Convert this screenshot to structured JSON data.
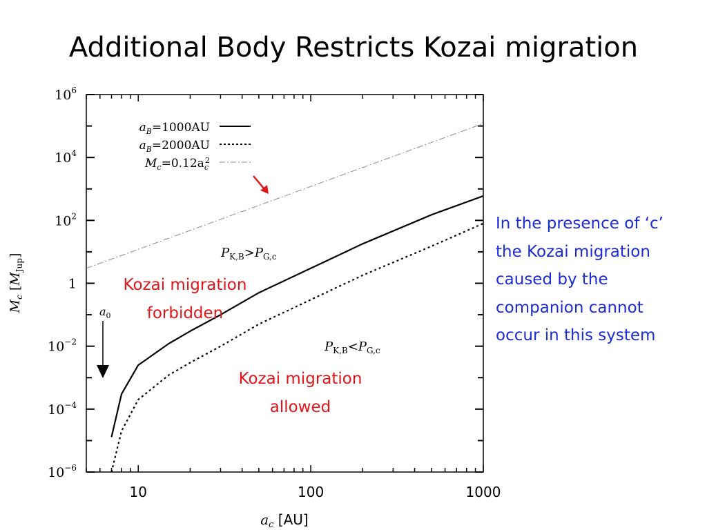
{
  "slide": {
    "title": "Additional Body Restricts Kozai migration",
    "note_lines": [
      "In the presence of ‘c’",
      "the Kozai migration",
      "caused by the",
      "companion cannot",
      "occur in this system"
    ],
    "colors": {
      "note": "#1d2bd6",
      "annotation": "#e0161a",
      "axes": "#000000",
      "dashdot_line": "#8a8a8a"
    }
  },
  "chart_data": {
    "type": "line",
    "x_scale": "log",
    "y_scale": "log",
    "xlim": [
      5,
      1000
    ],
    "ylim": [
      1e-06,
      1000000.0
    ],
    "x_ticks": [
      {
        "value": 10,
        "label": "10"
      },
      {
        "value": 100,
        "label": "100"
      },
      {
        "value": 1000,
        "label": "1000"
      }
    ],
    "y_ticks": [
      {
        "value": 1e-06,
        "base": "10",
        "exp": "−6"
      },
      {
        "value": 0.0001,
        "base": "10",
        "exp": "−4"
      },
      {
        "value": 0.01,
        "base": "10",
        "exp": "−2"
      },
      {
        "value": 1,
        "base": "1",
        "exp": ""
      },
      {
        "value": 100.0,
        "base": "10",
        "exp": "2"
      },
      {
        "value": 10000.0,
        "base": "10",
        "exp": "4"
      },
      {
        "value": 1000000.0,
        "base": "10",
        "exp": "6"
      }
    ],
    "xlabel": {
      "sym": "a",
      "sub": "c",
      "unit": " [AU]"
    },
    "ylabel": {
      "sym": "M",
      "sub": "c",
      "open": " [",
      "unit_sym": "M",
      "unit_sub": "Jup",
      "close": "]"
    },
    "legend": {
      "placement": "top-left",
      "entries": [
        {
          "sym": "a",
          "sub": "B",
          "text": "=1000AU"
        },
        {
          "sym": "a",
          "sub": "B",
          "text": "=2000AU"
        },
        {
          "sym": "M",
          "sub": "c",
          "text": "=0.12a",
          "text_sub": "c",
          "text_sup": "2"
        }
      ]
    },
    "series": [
      {
        "style": "solid",
        "points": [
          [
            7,
            1.3e-05
          ],
          [
            8,
            0.0003
          ],
          [
            10,
            0.0025
          ],
          [
            15,
            0.012
          ],
          [
            20,
            0.03
          ],
          [
            30,
            0.1
          ],
          [
            50,
            0.5
          ],
          [
            100,
            3
          ],
          [
            200,
            18
          ],
          [
            500,
            150
          ],
          [
            1000,
            600
          ]
        ]
      },
      {
        "style": "dotted",
        "points": [
          [
            7,
            1e-06
          ],
          [
            8,
            2e-05
          ],
          [
            10,
            0.0002
          ],
          [
            15,
            0.0012
          ],
          [
            20,
            0.003
          ],
          [
            30,
            0.01
          ],
          [
            50,
            0.05
          ],
          [
            100,
            0.3
          ],
          [
            200,
            1.8
          ],
          [
            500,
            15
          ],
          [
            1000,
            80
          ]
        ]
      },
      {
        "style": "dashdot",
        "points": [
          [
            5,
            3
          ],
          [
            1000,
            120000
          ]
        ]
      }
    ],
    "annotations": {
      "region_upper": {
        "P": "P",
        "sub1": "K,B",
        "op": ">",
        "P2": "P",
        "sub2": "G,c"
      },
      "region_lower": {
        "P": "P",
        "sub1": "K,B",
        "op": "<",
        "P2": "P",
        "sub2": "G,c"
      },
      "forbidden_lines": [
        "Kozai migration",
        "forbidden"
      ],
      "allowed_lines": [
        "Kozai migration",
        "allowed"
      ],
      "a0_label": {
        "sym": "a",
        "sub": "0"
      }
    }
  }
}
